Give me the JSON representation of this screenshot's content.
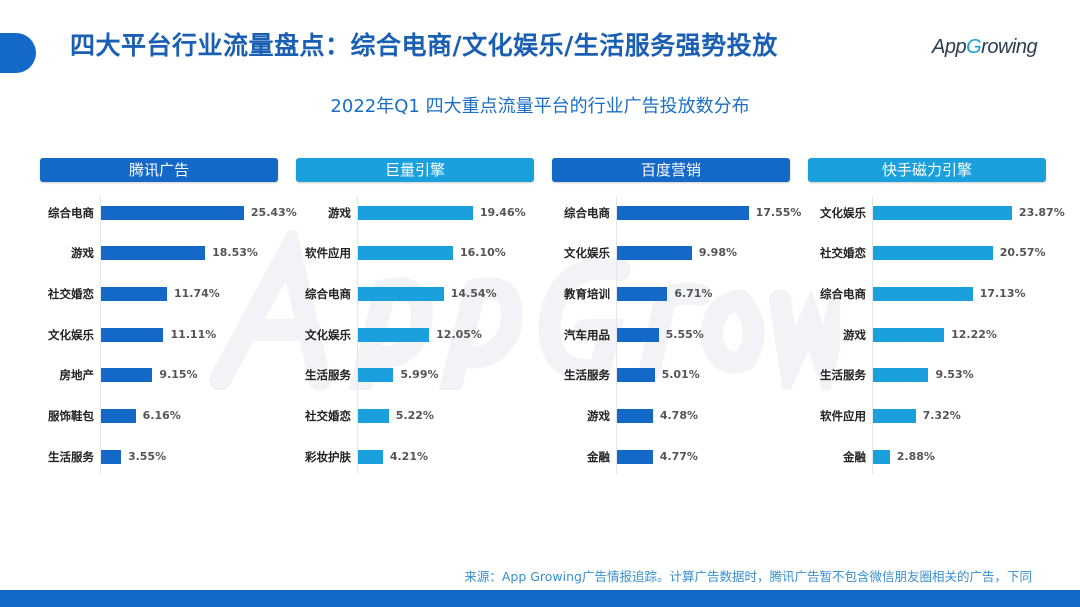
{
  "header": {
    "title": "四大平台行业流量盘点：综合电商/文化娱乐/生活服务强势投放",
    "logo": "AppGrowing"
  },
  "colors": {
    "dark_blue": "#1468c8",
    "light_blue": "#1aa0dc"
  },
  "chart_data": {
    "type": "bar",
    "title": "2022年Q1 四大重点流量平台的行业广告投放数分布",
    "orientation": "horizontal",
    "panels": [
      {
        "name": "腾讯广告",
        "color": "#1468c8",
        "categories": [
          "综合电商",
          "游戏",
          "社交婚恋",
          "文化娱乐",
          "房地产",
          "服饰鞋包",
          "生活服务"
        ],
        "values": [
          25.43,
          18.53,
          11.74,
          11.11,
          9.15,
          6.16,
          3.55
        ]
      },
      {
        "name": "巨量引擎",
        "color": "#1aa0dc",
        "categories": [
          "游戏",
          "软件应用",
          "综合电商",
          "文化娱乐",
          "生活服务",
          "社交婚恋",
          "彩妆护肤"
        ],
        "values": [
          19.46,
          16.1,
          14.54,
          12.05,
          5.99,
          5.22,
          4.21
        ]
      },
      {
        "name": "百度营销",
        "color": "#1468c8",
        "categories": [
          "综合电商",
          "文化娱乐",
          "教育培训",
          "汽车用品",
          "生活服务",
          "游戏",
          "金融"
        ],
        "values": [
          17.55,
          9.98,
          6.71,
          5.55,
          5.01,
          4.78,
          4.77
        ]
      },
      {
        "name": "快手磁力引擎",
        "color": "#1aa0dc",
        "categories": [
          "文化娱乐",
          "社交婚恋",
          "综合电商",
          "游戏",
          "生活服务",
          "软件应用",
          "金融"
        ],
        "values": [
          23.87,
          20.57,
          17.13,
          12.22,
          9.53,
          7.32,
          2.88
        ]
      }
    ],
    "value_format": "percent_2dp"
  },
  "footer": {
    "source": "来源：App Growing广告情报追踪。计算广告数据时，腾讯广告暂不包含微信朋友圈相关的广告，下同"
  }
}
